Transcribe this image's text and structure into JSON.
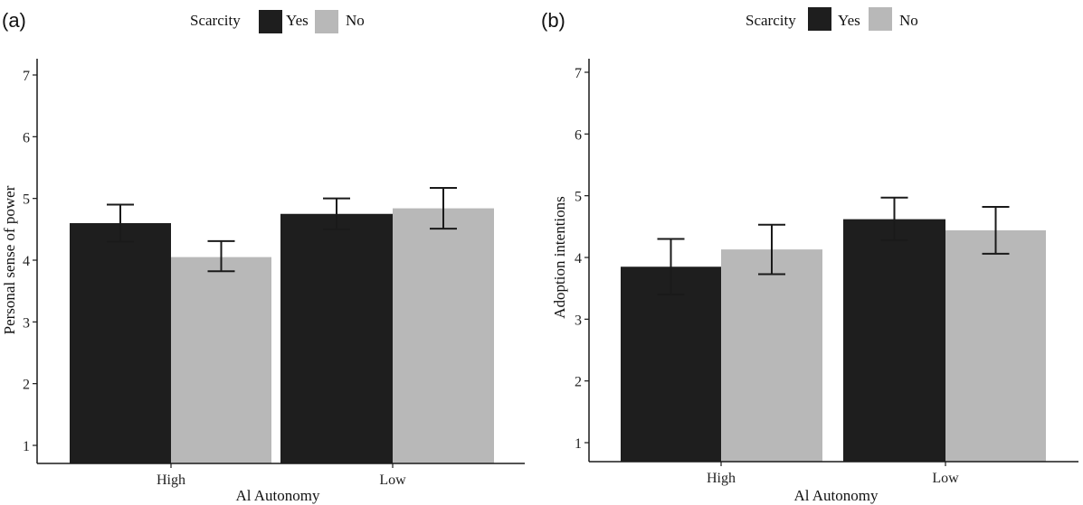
{
  "colors": {
    "yes": "#1e1e1e",
    "no": "#b8b8b8",
    "axis": "#1a1a1a",
    "errorbar": "#1a1a1a"
  },
  "chart_data": [
    {
      "type": "bar",
      "panel_label": "(a)",
      "categories": [
        "High",
        "Low"
      ],
      "xlabel": "Al Autonomy",
      "ylabel": "Personal sense of power",
      "ylim": [
        0.7,
        7.3
      ],
      "yticks": [
        1,
        2,
        3,
        4,
        5,
        6,
        7
      ],
      "legend": {
        "title": "Scarcity",
        "position": "top-center"
      },
      "grid": false,
      "series": [
        {
          "name": "Yes",
          "values": [
            4.6,
            4.75
          ],
          "err_low": [
            4.3,
            4.5
          ],
          "err_high": [
            4.9,
            5.0
          ]
        },
        {
          "name": "No",
          "values": [
            4.05,
            4.84
          ],
          "err_low": [
            3.82,
            4.51
          ],
          "err_high": [
            4.31,
            5.17
          ]
        }
      ]
    },
    {
      "type": "bar",
      "panel_label": "(b)",
      "categories": [
        "High",
        "Low"
      ],
      "xlabel": "Al Autonomy",
      "ylabel": "Adoption intentions",
      "ylim": [
        0.7,
        7.3
      ],
      "yticks": [
        1,
        2,
        3,
        4,
        5,
        6,
        7
      ],
      "legend": {
        "title": "Scarcity",
        "position": "top-center"
      },
      "grid": false,
      "series": [
        {
          "name": "Yes",
          "values": [
            3.85,
            4.62
          ],
          "err_low": [
            3.4,
            4.28
          ],
          "err_high": [
            4.3,
            4.97
          ]
        },
        {
          "name": "No",
          "values": [
            4.13,
            4.44
          ],
          "err_low": [
            3.73,
            4.06
          ],
          "err_high": [
            4.53,
            4.82
          ]
        }
      ]
    }
  ]
}
